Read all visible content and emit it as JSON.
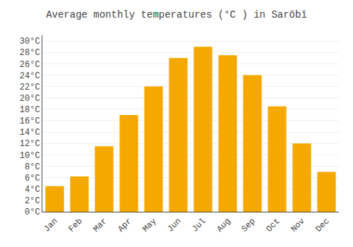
{
  "chart_data": {
    "type": "bar",
    "title": "Average monthly temperatures (°C ) in Sarōbī",
    "categories": [
      "Jan",
      "Feb",
      "Mar",
      "Apr",
      "May",
      "Jun",
      "Jul",
      "Aug",
      "Sep",
      "Oct",
      "Nov",
      "Dec"
    ],
    "values": [
      4.5,
      6.2,
      11.5,
      17.0,
      22.0,
      27.0,
      29.0,
      27.5,
      24.0,
      18.5,
      12.0,
      7.0
    ],
    "color": "#F5A800",
    "ylim": [
      0,
      31
    ],
    "yticks": [
      {
        "value": 0,
        "label": "0°C"
      },
      {
        "value": 2,
        "label": "2°C"
      },
      {
        "value": 4,
        "label": "4°C"
      },
      {
        "value": 6,
        "label": "6°C"
      },
      {
        "value": 8,
        "label": "8°C"
      },
      {
        "value": 10,
        "label": "10°C"
      },
      {
        "value": 12,
        "label": "12°C"
      },
      {
        "value": 14,
        "label": "14°C"
      },
      {
        "value": 16,
        "label": "16°C"
      },
      {
        "value": 18,
        "label": "18°C"
      },
      {
        "value": 20,
        "label": "20°C"
      },
      {
        "value": 22,
        "label": "22°C"
      },
      {
        "value": 24,
        "label": "24°C"
      },
      {
        "value": 26,
        "label": "26°C"
      },
      {
        "value": 28,
        "label": "28°C"
      },
      {
        "value": 30,
        "label": "30°C"
      }
    ],
    "grid": true
  }
}
